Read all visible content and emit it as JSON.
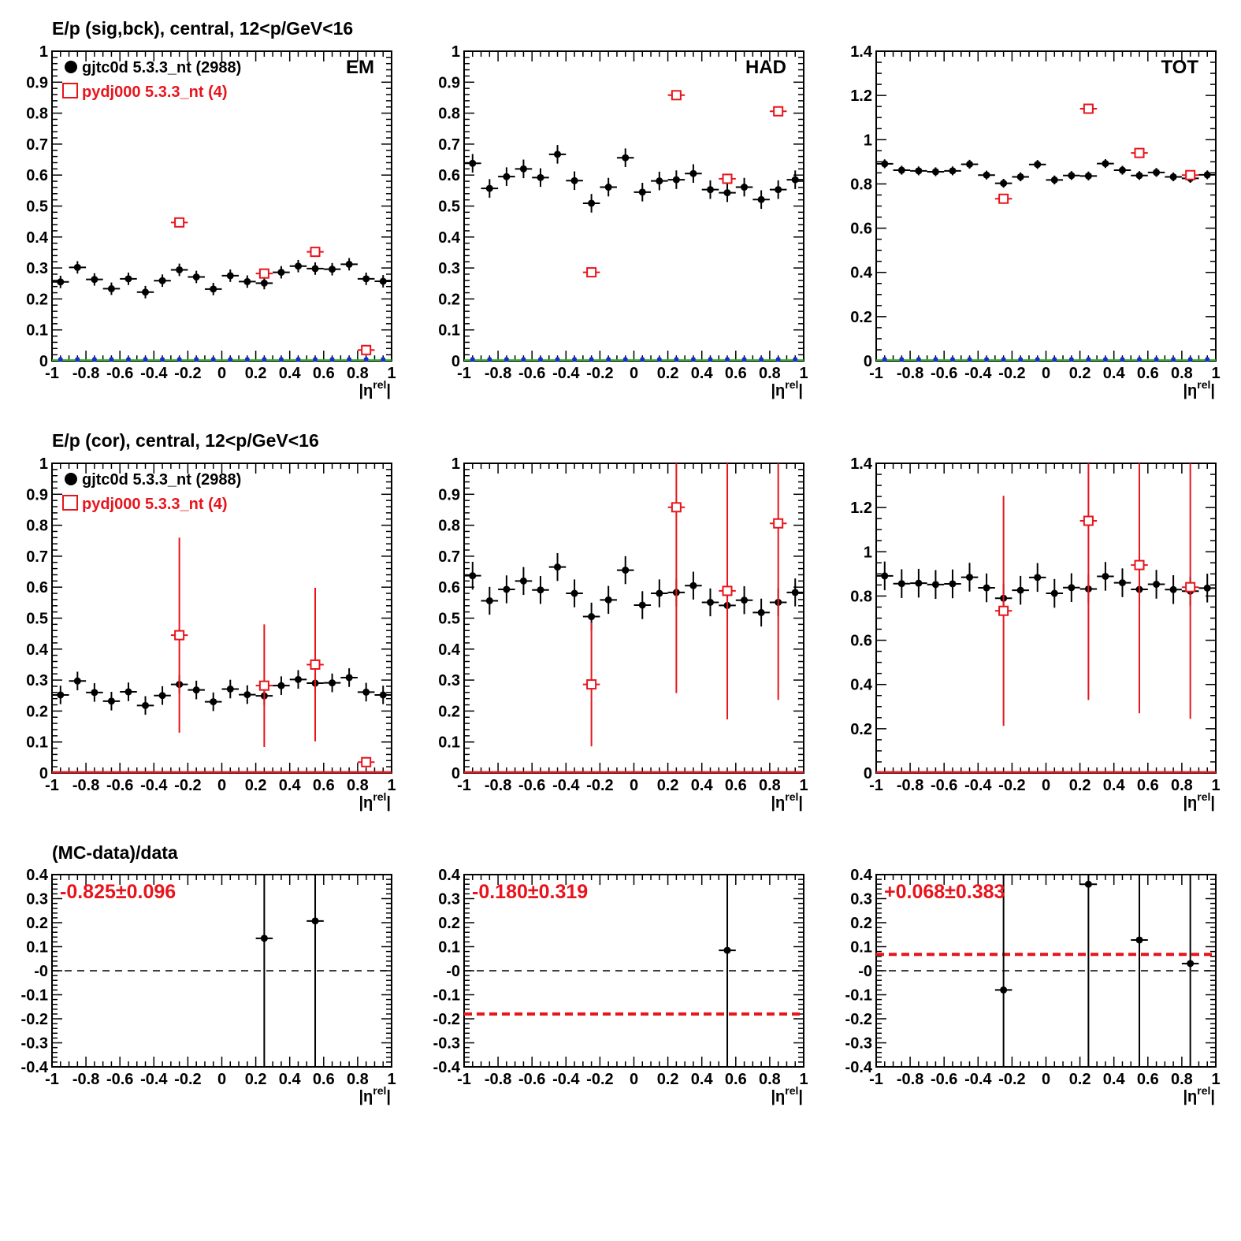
{
  "colors": {
    "data": "#000000",
    "mc": "#e8141c",
    "blue": "#1a2bd6",
    "green": "#22b222",
    "reddash": "#e8141c"
  },
  "row_titles": [
    "E/p (sig,bck), central, 12<p/GeV<16",
    "E/p (cor), central, 12<p/GeV<16",
    "(MC-data)/data"
  ],
  "legend": {
    "data_label": "gjtc0d 5.3.3_nt (2988)",
    "mc_label": "pydj000 5.3.3_nt (4)"
  },
  "xaxis": {
    "label_main": "|η",
    "label_sup": "rel",
    "label_end": "|",
    "ticks": [
      "-1",
      "-0.8",
      "-0.6",
      "-0.4",
      "-0.2",
      "0",
      "0.2",
      "0.4",
      "0.6",
      "0.8",
      "1"
    ]
  },
  "chart_data": [
    {
      "id": "em-sig",
      "row": 0,
      "col": 0,
      "type": "scatter",
      "panel_label": "EM",
      "legend": true,
      "xlim": [
        -1,
        1
      ],
      "ylim": [
        0,
        1
      ],
      "yticks": [
        "0",
        "0.1",
        "0.2",
        "0.3",
        "0.4",
        "0.5",
        "0.6",
        "0.7",
        "0.8",
        "0.9",
        "1"
      ],
      "data_series": {
        "name": "gjtc0d 5.3.3_nt (2988)",
        "err": 0.02,
        "y": [
          0.255,
          0.302,
          0.263,
          0.233,
          0.265,
          0.222,
          0.259,
          0.294,
          0.271,
          0.232,
          0.275,
          0.256,
          0.251,
          0.286,
          0.306,
          0.298,
          0.296,
          0.312,
          0.265,
          0.257
        ]
      },
      "mc_points": [
        {
          "x": -0.25,
          "y": 0.447,
          "err": 0
        },
        {
          "x": 0.25,
          "y": 0.282,
          "err": 0
        },
        {
          "x": 0.55,
          "y": 0.352,
          "err": 0
        },
        {
          "x": 0.85,
          "y": 0.035,
          "err": 0
        }
      ],
      "baseline": true
    },
    {
      "id": "had-sig",
      "row": 0,
      "col": 1,
      "type": "scatter",
      "panel_label": "HAD",
      "legend": false,
      "xlim": [
        -1,
        1
      ],
      "ylim": [
        0,
        1
      ],
      "yticks": [
        "0",
        "0.1",
        "0.2",
        "0.3",
        "0.4",
        "0.5",
        "0.6",
        "0.7",
        "0.8",
        "0.9",
        "1"
      ],
      "data_series": {
        "name": "gjtc0d 5.3.3_nt (2988)",
        "err": 0.03,
        "y": [
          0.638,
          0.557,
          0.595,
          0.62,
          0.592,
          0.667,
          0.582,
          0.509,
          0.561,
          0.656,
          0.545,
          0.581,
          0.585,
          0.605,
          0.553,
          0.543,
          0.561,
          0.521,
          0.553,
          0.585
        ]
      },
      "mc_points": [
        {
          "x": -0.25,
          "y": 0.286,
          "err": 0
        },
        {
          "x": 0.25,
          "y": 0.858,
          "err": 0
        },
        {
          "x": 0.55,
          "y": 0.588,
          "err": 0
        },
        {
          "x": 0.85,
          "y": 0.806,
          "err": 0
        }
      ],
      "baseline": true
    },
    {
      "id": "tot-sig",
      "row": 0,
      "col": 2,
      "type": "scatter",
      "panel_label": "TOT",
      "legend": false,
      "xlim": [
        -1,
        1
      ],
      "ylim": [
        0,
        1.4
      ],
      "yticks": [
        "0",
        "0.2",
        "0.4",
        "0.6",
        "0.8",
        "1",
        "1.2",
        "1.4"
      ],
      "data_series": {
        "name": "gjtc0d 5.3.3_nt (2988)",
        "err": 0.02,
        "y": [
          0.891,
          0.862,
          0.859,
          0.855,
          0.859,
          0.889,
          0.84,
          0.803,
          0.832,
          0.888,
          0.818,
          0.838,
          0.836,
          0.892,
          0.862,
          0.838,
          0.852,
          0.832,
          0.825,
          0.841
        ]
      },
      "mc_points": [
        {
          "x": -0.25,
          "y": 0.733,
          "err": 0
        },
        {
          "x": 0.25,
          "y": 1.14,
          "err": 0
        },
        {
          "x": 0.55,
          "y": 0.94,
          "err": 0
        },
        {
          "x": 0.85,
          "y": 0.84,
          "err": 0
        }
      ],
      "baseline": true
    },
    {
      "id": "em-cor",
      "row": 1,
      "col": 0,
      "type": "scatter",
      "panel_label": "",
      "legend": true,
      "xlim": [
        -1,
        1
      ],
      "ylim": [
        0,
        1
      ],
      "yticks": [
        "0",
        "0.1",
        "0.2",
        "0.3",
        "0.4",
        "0.5",
        "0.6",
        "0.7",
        "0.8",
        "0.9",
        "1"
      ],
      "data_series": {
        "name": "gjtc0d 5.3.3_nt (2988)",
        "err": 0.03,
        "y": [
          0.252,
          0.297,
          0.26,
          0.232,
          0.262,
          0.218,
          0.25,
          0.286,
          0.268,
          0.23,
          0.271,
          0.253,
          0.249,
          0.282,
          0.302,
          0.29,
          0.291,
          0.308,
          0.261,
          0.252
        ]
      },
      "mc_points": [
        {
          "x": -0.25,
          "y": 0.445,
          "err": 0.315
        },
        {
          "x": 0.25,
          "y": 0.282,
          "err": 0.198
        },
        {
          "x": 0.55,
          "y": 0.35,
          "err": 0.248
        },
        {
          "x": 0.85,
          "y": 0.035,
          "err": 0
        }
      ],
      "baseline": false
    },
    {
      "id": "had-cor",
      "row": 1,
      "col": 1,
      "type": "scatter",
      "panel_label": "",
      "legend": false,
      "xlim": [
        -1,
        1
      ],
      "ylim": [
        0,
        1
      ],
      "yticks": [
        "0",
        "0.1",
        "0.2",
        "0.3",
        "0.4",
        "0.5",
        "0.6",
        "0.7",
        "0.8",
        "0.9",
        "1"
      ],
      "data_series": {
        "name": "gjtc0d 5.3.3_nt (2988)",
        "err": 0.045,
        "y": [
          0.637,
          0.556,
          0.593,
          0.62,
          0.591,
          0.665,
          0.58,
          0.505,
          0.559,
          0.655,
          0.542,
          0.58,
          0.583,
          0.605,
          0.551,
          0.541,
          0.558,
          0.518,
          0.551,
          0.583
        ]
      },
      "mc_points": [
        {
          "x": -0.25,
          "y": 0.286,
          "err": 0.2
        },
        {
          "x": 0.25,
          "y": 0.858,
          "err": 0.6
        },
        {
          "x": 0.55,
          "y": 0.588,
          "err": 0.415
        },
        {
          "x": 0.85,
          "y": 0.806,
          "err": 0.57
        }
      ],
      "baseline": false
    },
    {
      "id": "tot-cor",
      "row": 1,
      "col": 2,
      "type": "scatter",
      "panel_label": "",
      "legend": false,
      "xlim": [
        -1,
        1
      ],
      "ylim": [
        0,
        1.4
      ],
      "yticks": [
        "0",
        "0.2",
        "0.4",
        "0.6",
        "0.8",
        "1",
        "1.2",
        "1.4"
      ],
      "data_series": {
        "name": "gjtc0d 5.3.3_nt (2988)",
        "err": 0.065,
        "y": [
          0.891,
          0.856,
          0.858,
          0.852,
          0.855,
          0.885,
          0.837,
          0.79,
          0.826,
          0.884,
          0.812,
          0.838,
          0.832,
          0.889,
          0.86,
          0.83,
          0.853,
          0.829,
          0.822,
          0.836
        ]
      },
      "mc_points": [
        {
          "x": -0.25,
          "y": 0.733,
          "err": 0.52
        },
        {
          "x": 0.25,
          "y": 1.14,
          "err": 0.81
        },
        {
          "x": 0.55,
          "y": 0.94,
          "err": 0.67
        },
        {
          "x": 0.85,
          "y": 0.84,
          "err": 0.595
        }
      ],
      "baseline": false
    },
    {
      "id": "em-ratio",
      "row": 2,
      "col": 0,
      "type": "scatter",
      "legend": false,
      "xlim": [
        -1,
        1
      ],
      "ylim": [
        -0.4,
        0.4
      ],
      "yticks": [
        "-0.4",
        "-0.3",
        "-0.2",
        "-0.1",
        "-0",
        "0.1",
        "0.2",
        "0.3",
        "0.4"
      ],
      "fit_label": "-0.825±0.096",
      "fit_value": -0.825,
      "ratio_points": [
        {
          "x": 0.25,
          "y": 0.135,
          "err": 0.9
        },
        {
          "x": 0.55,
          "y": 0.207,
          "err": 0.9
        }
      ]
    },
    {
      "id": "had-ratio",
      "row": 2,
      "col": 1,
      "type": "scatter",
      "legend": false,
      "xlim": [
        -1,
        1
      ],
      "ylim": [
        -0.4,
        0.4
      ],
      "yticks": [
        "-0.4",
        "-0.3",
        "-0.2",
        "-0.1",
        "-0",
        "0.1",
        "0.2",
        "0.3",
        "0.4"
      ],
      "fit_label": "-0.180±0.319",
      "fit_value": -0.18,
      "ratio_points": [
        {
          "x": 0.55,
          "y": 0.085,
          "err": 0.9
        }
      ]
    },
    {
      "id": "tot-ratio",
      "row": 2,
      "col": 2,
      "type": "scatter",
      "legend": false,
      "xlim": [
        -1,
        1
      ],
      "ylim": [
        -0.4,
        0.4
      ],
      "yticks": [
        "-0.4",
        "-0.3",
        "-0.2",
        "-0.1",
        "-0",
        "0.1",
        "0.2",
        "0.3",
        "0.4"
      ],
      "fit_label": "+0.068±0.383",
      "fit_value": 0.068,
      "ratio_points": [
        {
          "x": -0.25,
          "y": -0.08,
          "err": 0.9
        },
        {
          "x": 0.25,
          "y": 0.36,
          "err": 0.9
        },
        {
          "x": 0.55,
          "y": 0.128,
          "err": 0.9
        },
        {
          "x": 0.85,
          "y": 0.03,
          "err": 0.9
        }
      ]
    }
  ]
}
